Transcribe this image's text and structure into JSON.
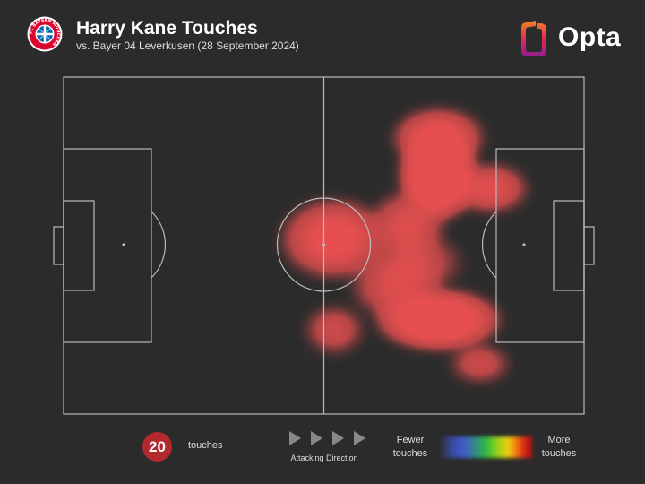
{
  "header": {
    "title": "Harry Kane Touches",
    "subtitle": "vs. Bayer 04 Leverkusen (28 September 2024)",
    "club_logo_icon": "fc-bayern-munchen-crest-icon",
    "club_logo_text": "FC BAYERN MÜNCHEN",
    "brand": "Opta",
    "brand_icon": "opta-logo-icon"
  },
  "colors": {
    "background": "#2b2b2b",
    "pitch_lines": "#bbbbbb",
    "badge": "#b2292e"
  },
  "footer": {
    "touch_count": "20",
    "touch_label": "touches",
    "direction_label": "Attacking Direction",
    "direction_icon": "play-arrow-icon",
    "legend_low": [
      "Fewer",
      "touches"
    ],
    "legend_high": [
      "More",
      "touches"
    ]
  },
  "chart_data": {
    "type": "heatmap",
    "subject": "Harry Kane touches",
    "pitch_length": 100,
    "pitch_width": 100,
    "attacking_direction": "right",
    "hotspots": [
      {
        "x": 72,
        "y": 29,
        "intensity": 1.0,
        "spread": [
          5,
          9
        ]
      },
      {
        "x": 72,
        "y": 18,
        "intensity": 0.55,
        "spread": [
          6,
          6
        ]
      },
      {
        "x": 72,
        "y": 72,
        "intensity": 0.85,
        "spread": [
          8,
          6
        ]
      },
      {
        "x": 64,
        "y": 62,
        "intensity": 0.35,
        "spread": [
          6,
          7
        ]
      },
      {
        "x": 52,
        "y": 48,
        "intensity": 0.55,
        "spread": [
          7,
          8
        ]
      },
      {
        "x": 66,
        "y": 44,
        "intensity": 0.38,
        "spread": [
          5,
          7
        ]
      },
      {
        "x": 82,
        "y": 33,
        "intensity": 0.42,
        "spread": [
          5,
          5
        ]
      },
      {
        "x": 80,
        "y": 85,
        "intensity": 0.28,
        "spread": [
          4,
          4
        ]
      },
      {
        "x": 52,
        "y": 75,
        "intensity": 0.28,
        "spread": [
          4,
          5
        ]
      },
      {
        "x": 68,
        "y": 55,
        "intensity": 0.25,
        "spread": [
          6,
          6
        ]
      }
    ]
  }
}
